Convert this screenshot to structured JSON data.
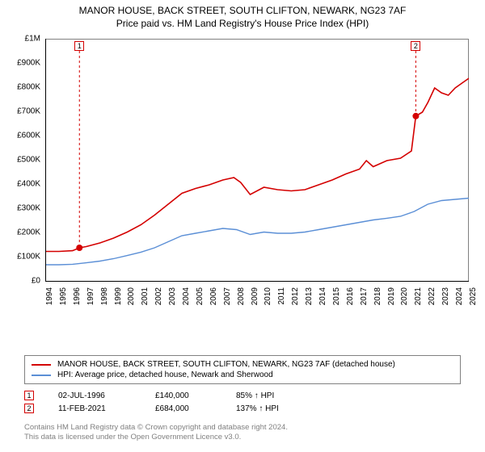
{
  "title": {
    "line1": "MANOR HOUSE, BACK STREET, SOUTH CLIFTON, NEWARK, NG23 7AF",
    "line2": "Price paid vs. HM Land Registry's House Price Index (HPI)",
    "fontsize": 12,
    "color": "#000000"
  },
  "chart": {
    "type": "line",
    "background_color": "#ffffff",
    "border_color": "#808080",
    "axis_color": "#000000",
    "label_fontsize": 10,
    "xlim": [
      1994,
      2025
    ],
    "x_ticks": [
      1994,
      1995,
      1996,
      1997,
      1998,
      1999,
      2000,
      2001,
      2002,
      2003,
      2004,
      2005,
      2006,
      2007,
      2008,
      2009,
      2010,
      2011,
      2012,
      2013,
      2014,
      2015,
      2016,
      2017,
      2018,
      2019,
      2020,
      2021,
      2022,
      2023,
      2024,
      2025
    ],
    "ylim": [
      0,
      1000000
    ],
    "y_ticks": [
      0,
      100000,
      200000,
      300000,
      400000,
      500000,
      600000,
      700000,
      800000,
      900000,
      1000000
    ],
    "y_tick_labels": [
      "£0",
      "£100K",
      "£200K",
      "£300K",
      "£400K",
      "£500K",
      "£600K",
      "£700K",
      "£800K",
      "£900K",
      "£1M"
    ],
    "series": [
      {
        "id": "property",
        "label": "MANOR HOUSE, BACK STREET, SOUTH CLIFTON, NEWARK, NG23 7AF (detached house)",
        "color": "#d40000",
        "line_width": 1.6,
        "points": [
          [
            1994.0,
            125000
          ],
          [
            1995.0,
            125000
          ],
          [
            1996.0,
            128000
          ],
          [
            1996.5,
            140000
          ],
          [
            1997.0,
            145000
          ],
          [
            1998.0,
            160000
          ],
          [
            1999.0,
            180000
          ],
          [
            2000.0,
            205000
          ],
          [
            2001.0,
            235000
          ],
          [
            2002.0,
            275000
          ],
          [
            2003.0,
            320000
          ],
          [
            2004.0,
            365000
          ],
          [
            2005.0,
            385000
          ],
          [
            2006.0,
            400000
          ],
          [
            2007.0,
            420000
          ],
          [
            2007.8,
            430000
          ],
          [
            2008.3,
            410000
          ],
          [
            2009.0,
            360000
          ],
          [
            2010.0,
            390000
          ],
          [
            2011.0,
            380000
          ],
          [
            2012.0,
            375000
          ],
          [
            2013.0,
            380000
          ],
          [
            2014.0,
            400000
          ],
          [
            2015.0,
            420000
          ],
          [
            2016.0,
            445000
          ],
          [
            2017.0,
            465000
          ],
          [
            2017.5,
            500000
          ],
          [
            2018.0,
            475000
          ],
          [
            2019.0,
            500000
          ],
          [
            2020.0,
            510000
          ],
          [
            2020.8,
            540000
          ],
          [
            2021.12,
            684000
          ],
          [
            2021.6,
            700000
          ],
          [
            2022.0,
            740000
          ],
          [
            2022.5,
            800000
          ],
          [
            2023.0,
            780000
          ],
          [
            2023.5,
            770000
          ],
          [
            2024.0,
            800000
          ],
          [
            2024.5,
            820000
          ],
          [
            2025.0,
            840000
          ]
        ]
      },
      {
        "id": "hpi",
        "label": "HPI: Average price, detached house, Newark and Sherwood",
        "color": "#5b8fd6",
        "line_width": 1.4,
        "points": [
          [
            1994.0,
            70000
          ],
          [
            1995.0,
            70000
          ],
          [
            1996.0,
            72000
          ],
          [
            1997.0,
            78000
          ],
          [
            1998.0,
            85000
          ],
          [
            1999.0,
            95000
          ],
          [
            2000.0,
            108000
          ],
          [
            2001.0,
            122000
          ],
          [
            2002.0,
            140000
          ],
          [
            2003.0,
            165000
          ],
          [
            2004.0,
            190000
          ],
          [
            2005.0,
            200000
          ],
          [
            2006.0,
            210000
          ],
          [
            2007.0,
            220000
          ],
          [
            2008.0,
            215000
          ],
          [
            2009.0,
            195000
          ],
          [
            2010.0,
            205000
          ],
          [
            2011.0,
            200000
          ],
          [
            2012.0,
            200000
          ],
          [
            2013.0,
            205000
          ],
          [
            2014.0,
            215000
          ],
          [
            2015.0,
            225000
          ],
          [
            2016.0,
            235000
          ],
          [
            2017.0,
            245000
          ],
          [
            2018.0,
            255000
          ],
          [
            2019.0,
            262000
          ],
          [
            2020.0,
            270000
          ],
          [
            2021.0,
            290000
          ],
          [
            2022.0,
            320000
          ],
          [
            2023.0,
            335000
          ],
          [
            2024.0,
            340000
          ],
          [
            2025.0,
            345000
          ]
        ]
      }
    ],
    "markers": [
      {
        "n": "1",
        "x": 1996.5,
        "y": 140000,
        "box_at_top": true,
        "date": "02-JUL-1996",
        "price": "£140,000",
        "pct": "85% ↑ HPI",
        "dot_color": "#d40000"
      },
      {
        "n": "2",
        "x": 2021.12,
        "y": 684000,
        "box_at_top": true,
        "date": "11-FEB-2021",
        "price": "£684,000",
        "pct": "137% ↑ HPI",
        "dot_color": "#d40000"
      }
    ]
  },
  "legend": {
    "border_color": "#808080",
    "fontsize": 10
  },
  "marker_box": {
    "border_color": "#d40000",
    "fontsize": 9
  },
  "footnote": {
    "line1": "Contains HM Land Registry data © Crown copyright and database right 2024.",
    "line2": "This data is licensed under the Open Government Licence v3.0.",
    "color": "#808080",
    "fontsize": 9.5
  }
}
